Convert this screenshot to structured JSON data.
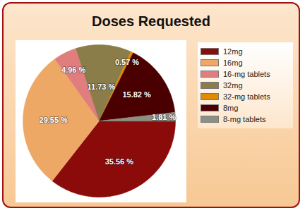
{
  "chart_data": {
    "type": "pie",
    "title": "Doses Requested",
    "categories": [
      "12mg",
      "16mg",
      "16-mg tablets",
      "32mg",
      "32-mg tablets",
      "8mg",
      "8-mg tablets"
    ],
    "values": [
      35.56,
      29.55,
      4.96,
      11.73,
      0.57,
      15.82,
      1.81
    ],
    "value_labels": [
      "35.56 %",
      "29.55 %",
      "4.96 %",
      "11.73 %",
      "0.57 %",
      "15.82 %",
      "1.81 %"
    ],
    "colors": [
      "#8b0a0a",
      "#eea866",
      "#e07e7e",
      "#8b7d4a",
      "#e08a00",
      "#4a0000",
      "#8a9082"
    ],
    "data_labels": true,
    "legend": "right"
  }
}
